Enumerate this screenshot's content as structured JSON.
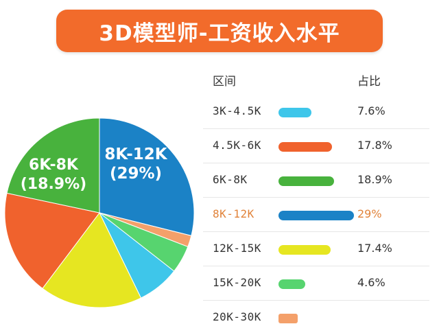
{
  "title": "3D模型师-工资收入水平",
  "table": {
    "header_range": "区间",
    "header_pct": "占比",
    "highlight_color": "#e1833a"
  },
  "chart_data": {
    "type": "pie",
    "title": "3D模型师-工资收入水平",
    "categories": [
      "3K-4.5K",
      "4.5K-6K",
      "6K-8K",
      "8K-12K",
      "12K-15K",
      "15K-20K",
      "20K-30K"
    ],
    "values": [
      7.6,
      17.8,
      18.9,
      29,
      17.4,
      4.6,
      null
    ],
    "pct_labels": [
      "7.6%",
      "17.8%",
      "18.9%",
      "29%",
      "17.4%",
      "4.6%",
      ""
    ],
    "colors": [
      "#3ec6ea",
      "#f0622d",
      "#48b23d",
      "#1b82c6",
      "#e6e621",
      "#57d46f",
      "#f4a06a"
    ],
    "highlight_index": 3,
    "slice_labels": [
      {
        "index": 3,
        "lines": [
          "8K-12K",
          "(29%)"
        ]
      },
      {
        "index": 2,
        "lines": [
          "6K-8K",
          "(18.9%)"
        ]
      }
    ],
    "legend": "right"
  }
}
